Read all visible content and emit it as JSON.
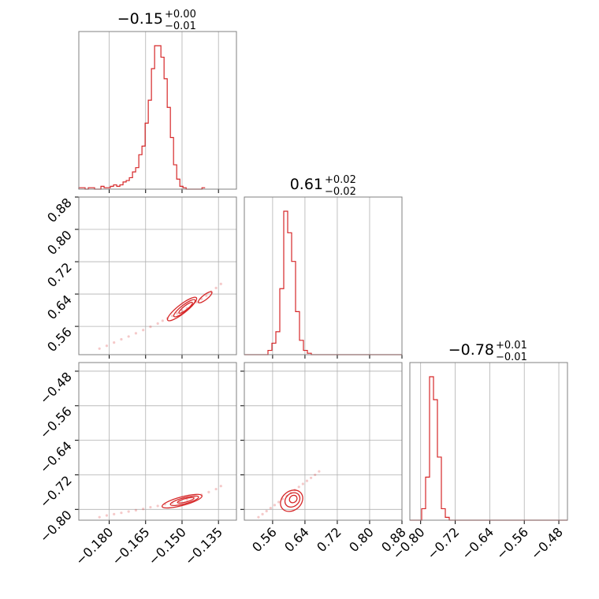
{
  "chart_data": {
    "type": "corner",
    "colors": {
      "accent": "#d62728",
      "grid": "#b0b0b0",
      "frame": "#808080"
    },
    "titles": [
      {
        "main": "−0.15",
        "plus": "+0.00",
        "minus": "−0.01"
      },
      {
        "main": "0.61",
        "plus": "+0.02",
        "minus": "−0.02"
      },
      {
        "main": "−0.78",
        "plus": "+0.01",
        "minus": "−0.01"
      }
    ],
    "axes": {
      "p0": {
        "range": [
          -0.1925,
          -0.1276
        ],
        "ticks": [
          -0.18,
          -0.165,
          -0.15,
          -0.135
        ],
        "labels": [
          "−0.180",
          "−0.165",
          "−0.150",
          "−0.135"
        ]
      },
      "p1": {
        "range": [
          0.49,
          0.88
        ],
        "ticks": [
          0.56,
          0.64,
          0.72,
          0.8,
          0.88
        ],
        "labels": [
          "0.56",
          "0.64",
          "0.72",
          "0.80",
          "0.88"
        ]
      },
      "p2": {
        "range": [
          -0.825,
          -0.46
        ],
        "ticks": [
          -0.8,
          -0.72,
          -0.64,
          -0.56,
          -0.48
        ],
        "labels": [
          "−0.80",
          "−0.72",
          "−0.64",
          "−0.56",
          "−0.48"
        ]
      }
    },
    "hist0": {
      "edges_start": -0.1925,
      "bin_width": 0.0013,
      "counts": [
        1,
        1,
        0,
        1,
        1,
        0,
        0,
        2,
        1,
        1,
        2,
        3,
        2,
        3,
        5,
        6,
        8,
        12,
        15,
        24,
        30,
        46,
        62,
        84,
        100,
        100,
        92,
        77,
        57,
        36,
        17,
        7,
        2,
        1,
        0,
        0,
        0,
        0,
        0,
        1
      ]
    },
    "hist1": {
      "edges_start": 0.49,
      "bin_width": 0.00975,
      "counts": [
        0,
        0,
        0,
        0,
        0,
        0,
        3,
        8,
        16,
        46,
        100,
        85,
        65,
        30,
        10,
        3,
        1,
        0,
        0,
        0,
        0,
        0,
        0,
        0,
        0,
        0,
        0,
        0,
        0,
        0,
        0,
        0,
        0,
        0,
        0,
        0,
        0,
        0,
        0,
        0
      ]
    },
    "hist2": {
      "edges_start": -0.825,
      "bin_width": 0.009125,
      "counts": [
        0,
        0,
        0,
        8,
        30,
        100,
        84,
        44,
        8,
        2,
        0,
        0,
        0,
        0,
        0,
        0,
        0,
        0,
        0,
        0,
        0,
        0,
        0,
        0,
        0,
        0,
        0,
        0,
        0,
        0,
        0,
        0,
        0,
        0,
        0,
        0,
        0,
        0,
        0,
        0
      ]
    },
    "scatter_10": {
      "points": [
        [
          -0.184,
          0.505
        ],
        [
          -0.181,
          0.512
        ],
        [
          -0.178,
          0.52
        ],
        [
          -0.175,
          0.528
        ],
        [
          -0.172,
          0.535
        ],
        [
          -0.169,
          0.543
        ],
        [
          -0.166,
          0.551
        ],
        [
          -0.163,
          0.559
        ],
        [
          -0.16,
          0.567
        ],
        [
          -0.158,
          0.574
        ],
        [
          -0.156,
          0.58
        ],
        [
          -0.154,
          0.586
        ],
        [
          -0.152,
          0.592
        ],
        [
          -0.15,
          0.599
        ],
        [
          -0.148,
          0.605
        ],
        [
          -0.146,
          0.612
        ],
        [
          -0.144,
          0.62
        ],
        [
          -0.142,
          0.628
        ],
        [
          -0.14,
          0.636
        ],
        [
          -0.138,
          0.646
        ],
        [
          -0.136,
          0.655
        ],
        [
          -0.134,
          0.665
        ]
      ],
      "contours": [
        {
          "cx": -0.15,
          "cy": 0.603,
          "rx": 0.0075,
          "ry": 0.011,
          "angle": -38
        },
        {
          "cx": -0.149,
          "cy": 0.605,
          "rx": 0.0055,
          "ry": 0.008,
          "angle": -38
        },
        {
          "cx": -0.1485,
          "cy": 0.606,
          "rx": 0.0035,
          "ry": 0.005,
          "angle": -38
        },
        {
          "cx": -0.1405,
          "cy": 0.632,
          "rx": 0.0035,
          "ry": 0.006,
          "angle": -38
        }
      ]
    },
    "scatter_20": {
      "points": [
        [
          -0.184,
          -0.818
        ],
        [
          -0.181,
          -0.814
        ],
        [
          -0.178,
          -0.811
        ],
        [
          -0.175,
          -0.808
        ],
        [
          -0.172,
          -0.805
        ],
        [
          -0.169,
          -0.802
        ],
        [
          -0.166,
          -0.799
        ],
        [
          -0.163,
          -0.795
        ],
        [
          -0.16,
          -0.792
        ],
        [
          -0.157,
          -0.788
        ],
        [
          -0.154,
          -0.785
        ],
        [
          -0.151,
          -0.781
        ],
        [
          -0.148,
          -0.777
        ],
        [
          -0.145,
          -0.772
        ],
        [
          -0.142,
          -0.766
        ],
        [
          -0.139,
          -0.76
        ],
        [
          -0.136,
          -0.753
        ],
        [
          -0.134,
          -0.746
        ]
      ],
      "contours": [
        {
          "cx": -0.15,
          "cy": -0.781,
          "rx": 0.0085,
          "ry": 0.01,
          "angle": -15
        },
        {
          "cx": -0.149,
          "cy": -0.78,
          "rx": 0.006,
          "ry": 0.007,
          "angle": -15
        },
        {
          "cx": -0.1485,
          "cy": -0.779,
          "rx": 0.0035,
          "ry": 0.004,
          "angle": -15
        }
      ]
    },
    "scatter_21": {
      "points": [
        [
          0.525,
          -0.818
        ],
        [
          0.535,
          -0.811
        ],
        [
          0.545,
          -0.804
        ],
        [
          0.555,
          -0.797
        ],
        [
          0.565,
          -0.79
        ],
        [
          0.575,
          -0.783
        ],
        [
          0.585,
          -0.776
        ],
        [
          0.595,
          -0.769
        ],
        [
          0.605,
          -0.762
        ],
        [
          0.615,
          -0.755
        ],
        [
          0.625,
          -0.748
        ],
        [
          0.635,
          -0.741
        ],
        [
          0.645,
          -0.734
        ],
        [
          0.655,
          -0.727
        ],
        [
          0.665,
          -0.72
        ],
        [
          0.675,
          -0.712
        ]
      ],
      "contours": [
        {
          "cx": 0.607,
          "cy": -0.78,
          "rx": 0.03,
          "ry": 0.022,
          "angle": -40
        },
        {
          "cx": 0.609,
          "cy": -0.778,
          "rx": 0.02,
          "ry": 0.015,
          "angle": -40
        },
        {
          "cx": 0.611,
          "cy": -0.776,
          "rx": 0.01,
          "ry": 0.008,
          "angle": -40
        }
      ]
    }
  }
}
